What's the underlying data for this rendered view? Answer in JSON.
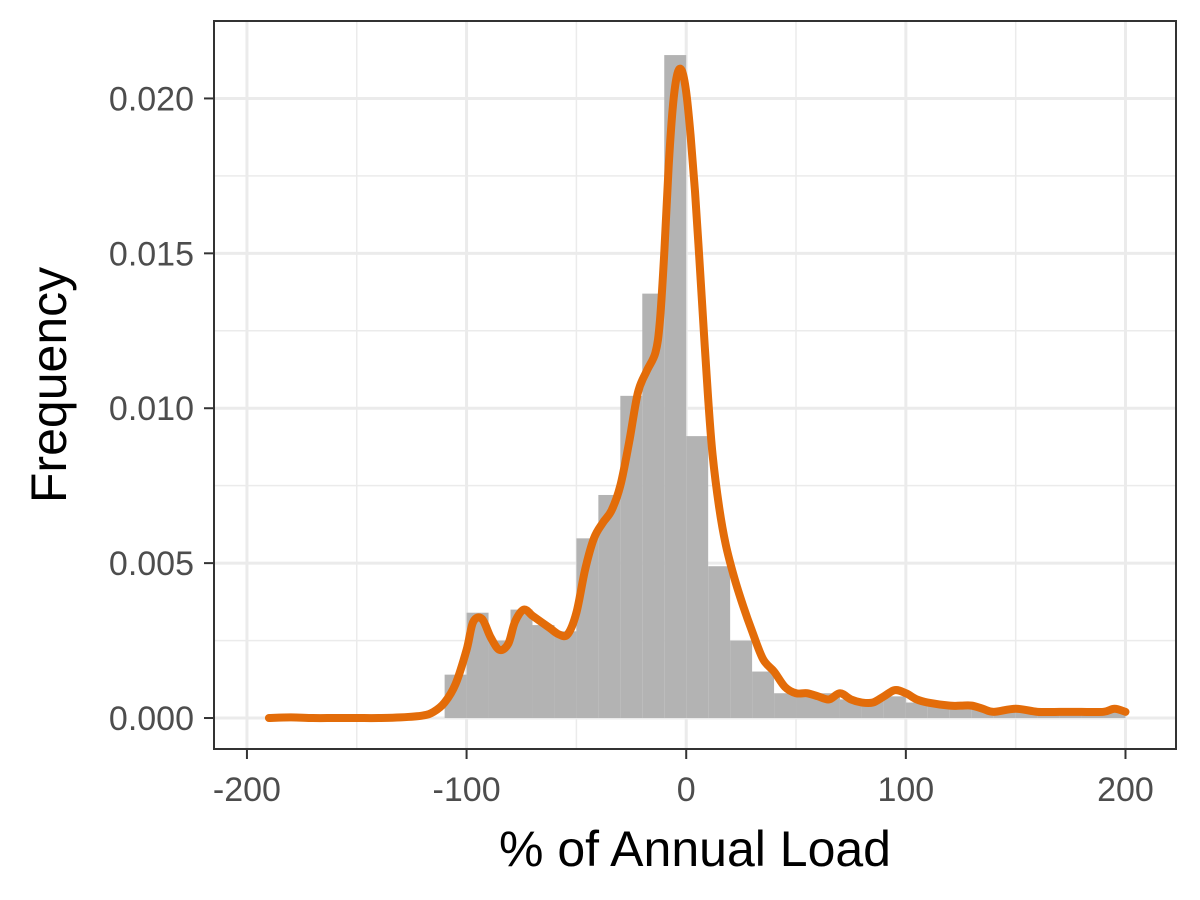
{
  "chart_data": {
    "type": "histogram",
    "xlabel": "% of Annual Load",
    "ylabel": "Frequency",
    "xlim": [
      -215,
      223
    ],
    "ylim": [
      -0.001,
      0.0225
    ],
    "x_ticks": [
      -200,
      -100,
      0,
      100,
      200
    ],
    "x_tick_labels": [
      "-200",
      "-100",
      "0",
      "100",
      "200"
    ],
    "y_ticks": [
      0,
      0.005,
      0.01,
      0.015,
      0.02
    ],
    "y_tick_labels": [
      "0.000",
      "0.005",
      "0.010",
      "0.015",
      "0.020"
    ],
    "grid": true,
    "histogram": {
      "color": "#b3b3b3",
      "bin_width": 10,
      "bin_starts": [
        -110,
        -100,
        -90,
        -80,
        -70,
        -60,
        -50,
        -40,
        -30,
        -20,
        -10,
        0,
        10,
        20,
        30,
        40,
        50,
        60,
        70,
        80,
        90,
        100,
        110,
        120,
        130,
        140,
        150,
        160,
        170,
        180,
        190
      ],
      "densities": [
        0.0014,
        0.0034,
        0.0025,
        0.0035,
        0.003,
        0.0028,
        0.0058,
        0.0072,
        0.0104,
        0.0137,
        0.0214,
        0.0091,
        0.0049,
        0.0025,
        0.0015,
        0.0008,
        0.0008,
        0.0008,
        0.0006,
        0.0006,
        0.0007,
        0.0005,
        0.0004,
        0.0004,
        0.0003,
        0.0003,
        0.0003,
        0.0003,
        0.0002,
        0.0002,
        0.0002
      ]
    },
    "density_line": {
      "color": "#e36c09",
      "x": [
        -190,
        -180,
        -170,
        -160,
        -150,
        -140,
        -130,
        -120,
        -115,
        -110,
        -105,
        -100,
        -97,
        -93,
        -89,
        -85,
        -81,
        -78,
        -74,
        -70,
        -66,
        -62,
        -58,
        -54,
        -50,
        -46,
        -42,
        -38,
        -34,
        -30,
        -26,
        -22,
        -18,
        -14,
        -12,
        -10,
        -8,
        -6,
        -4,
        -2,
        0,
        2,
        4,
        6,
        8,
        10,
        12,
        15,
        18,
        22,
        26,
        30,
        35,
        40,
        45,
        50,
        55,
        60,
        65,
        70,
        75,
        80,
        85,
        90,
        95,
        100,
        105,
        110,
        120,
        125,
        130,
        135,
        140,
        150,
        160,
        170,
        180,
        190,
        195,
        200
      ],
      "y": [
        0.0,
        2e-05,
        0.0,
        0.0,
        0.0,
        0.0,
        2e-05,
        8e-05,
        0.0002,
        0.0005,
        0.0011,
        0.0022,
        0.0031,
        0.0032,
        0.0026,
        0.0022,
        0.0024,
        0.0031,
        0.0035,
        0.0033,
        0.0031,
        0.0029,
        0.0027,
        0.0027,
        0.0034,
        0.0048,
        0.0058,
        0.0063,
        0.0067,
        0.0075,
        0.0089,
        0.0105,
        0.0112,
        0.0118,
        0.0128,
        0.015,
        0.0178,
        0.0198,
        0.0208,
        0.0209,
        0.0202,
        0.0188,
        0.017,
        0.0148,
        0.0125,
        0.0103,
        0.0085,
        0.0068,
        0.0056,
        0.0045,
        0.0036,
        0.0028,
        0.0019,
        0.0015,
        0.001,
        0.0008,
        0.0008,
        0.0007,
        0.0006,
        0.0008,
        0.0006,
        0.0005,
        0.0005,
        0.0007,
        0.0009,
        0.0008,
        0.0006,
        0.0005,
        0.0004,
        0.0004,
        0.0004,
        0.0003,
        0.0002,
        0.0003,
        0.0002,
        0.0002,
        0.0002,
        0.0002,
        0.0003,
        0.0002
      ]
    }
  }
}
